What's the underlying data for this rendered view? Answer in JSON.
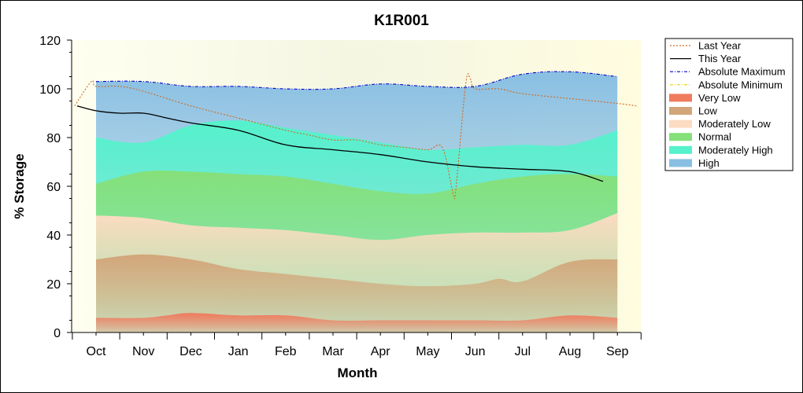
{
  "chart_data": {
    "type": "area",
    "title": "K1R001",
    "xlabel": "Month",
    "ylabel": "% Storage",
    "ylim": [
      0,
      120
    ],
    "yticks": [
      "0",
      "20",
      "40",
      "60",
      "80",
      "100",
      "120"
    ],
    "categories": [
      "Oct",
      "Nov",
      "Dec",
      "Jan",
      "Feb",
      "Mar",
      "Apr",
      "May",
      "Jun",
      "Jul",
      "Aug",
      "Sep"
    ],
    "grid": false,
    "legend_position": "right",
    "bands": [
      {
        "name": "Very Low",
        "color": "#f07a5e",
        "x": [
          0,
          1,
          1.5,
          2,
          3,
          4,
          5,
          6,
          7,
          8,
          9,
          10,
          11
        ],
        "values": [
          6,
          6,
          7,
          8,
          7,
          7,
          5,
          5,
          5,
          5,
          5,
          7,
          6
        ]
      },
      {
        "name": "Low",
        "color": "#d2a67a",
        "x": [
          0,
          1,
          2,
          3,
          4,
          5,
          6,
          7,
          8,
          8.5,
          9,
          10,
          11
        ],
        "values": [
          30,
          32,
          30,
          26,
          24,
          22,
          20,
          19,
          20,
          22,
          21,
          29,
          30
        ]
      },
      {
        "name": "Moderately Low",
        "color": "#fcdcc2",
        "x": [
          0,
          1,
          2,
          3,
          4,
          5,
          6,
          7,
          8,
          9,
          10,
          11
        ],
        "values": [
          48,
          47,
          44,
          43,
          42,
          40,
          38,
          40,
          41,
          41,
          42,
          49
        ]
      },
      {
        "name": "Normal",
        "color": "#86e07a",
        "x": [
          0,
          1,
          2,
          3,
          4,
          5,
          6,
          7,
          8,
          9,
          10,
          11
        ],
        "values": [
          61,
          66,
          66,
          65,
          64,
          61,
          58,
          57,
          61,
          64,
          65,
          64
        ]
      },
      {
        "name": "Moderately High",
        "color": "#55f2cc",
        "x": [
          0,
          1,
          2,
          3,
          4,
          5,
          6,
          7,
          8,
          9,
          10,
          11
        ],
        "values": [
          80,
          78,
          85,
          87,
          84,
          81,
          78,
          75,
          76,
          77,
          77,
          83
        ]
      },
      {
        "name": "High",
        "color": "#89bfe3",
        "x": [
          0,
          1,
          2,
          3,
          4,
          5,
          6,
          7,
          8,
          9,
          10,
          11
        ],
        "values": [
          103,
          103,
          101,
          101,
          100,
          100,
          102,
          101,
          101,
          106,
          107,
          105
        ]
      }
    ],
    "series": [
      {
        "name": "Last Year",
        "color": "#d2691e",
        "style": "dotted",
        "x": [
          -0.45,
          -0.1,
          0,
          0.5,
          1,
          2,
          3,
          4,
          4.5,
          5,
          5.5,
          6,
          6.5,
          7,
          7.3,
          7.5,
          7.55,
          7.6,
          7.8,
          7.9,
          8,
          8.5,
          9,
          10,
          11,
          11.4
        ],
        "values": [
          93,
          103,
          101,
          101,
          99,
          93,
          88,
          83,
          81,
          79,
          79,
          77,
          76,
          75,
          76,
          60,
          56,
          60,
          102,
          104,
          100,
          100,
          98,
          96,
          94,
          93
        ]
      },
      {
        "name": "This Year",
        "color": "#000000",
        "style": "solid",
        "x": [
          -0.4,
          0,
          0.5,
          1,
          1.5,
          2,
          3,
          4,
          5,
          6,
          7,
          8,
          9,
          10,
          10.7
        ],
        "values": [
          93,
          91,
          90,
          90,
          88,
          86,
          83,
          77,
          75,
          73,
          70,
          68,
          67,
          66,
          62
        ]
      },
      {
        "name": "Absolute Maximum",
        "color": "#0000cc",
        "style": "dashdot",
        "x": [
          0,
          1,
          2,
          3,
          4,
          5,
          6,
          7,
          8,
          9,
          10,
          11
        ],
        "values": [
          103,
          103,
          101,
          101,
          100,
          100,
          102,
          101,
          101,
          106,
          107,
          105
        ]
      },
      {
        "name": "Absolute Minimum",
        "color": "#e6d200",
        "style": "dashdot",
        "x": [],
        "values": []
      }
    ]
  },
  "legend": {
    "items": [
      {
        "label": "Last Year",
        "kind": "line",
        "color": "#d2691e",
        "style": "dotted"
      },
      {
        "label": "This Year",
        "kind": "line",
        "color": "#000000",
        "style": "solid"
      },
      {
        "label": "Absolute Maximum",
        "kind": "line",
        "color": "#0000cc",
        "style": "dashdot"
      },
      {
        "label": "Absolute Minimum",
        "kind": "line",
        "color": "#e6d200",
        "style": "dashdot"
      },
      {
        "label": "Very Low",
        "kind": "band",
        "color": "#f07a5e"
      },
      {
        "label": "Low",
        "kind": "band",
        "color": "#d2a67a"
      },
      {
        "label": "Moderately Low",
        "kind": "band",
        "color": "#fcdcc2"
      },
      {
        "label": "Normal",
        "kind": "band",
        "color": "#86e07a"
      },
      {
        "label": "Moderately High",
        "kind": "band",
        "color": "#55f2cc"
      },
      {
        "label": "High",
        "kind": "band",
        "color": "#89bfe3"
      }
    ]
  }
}
